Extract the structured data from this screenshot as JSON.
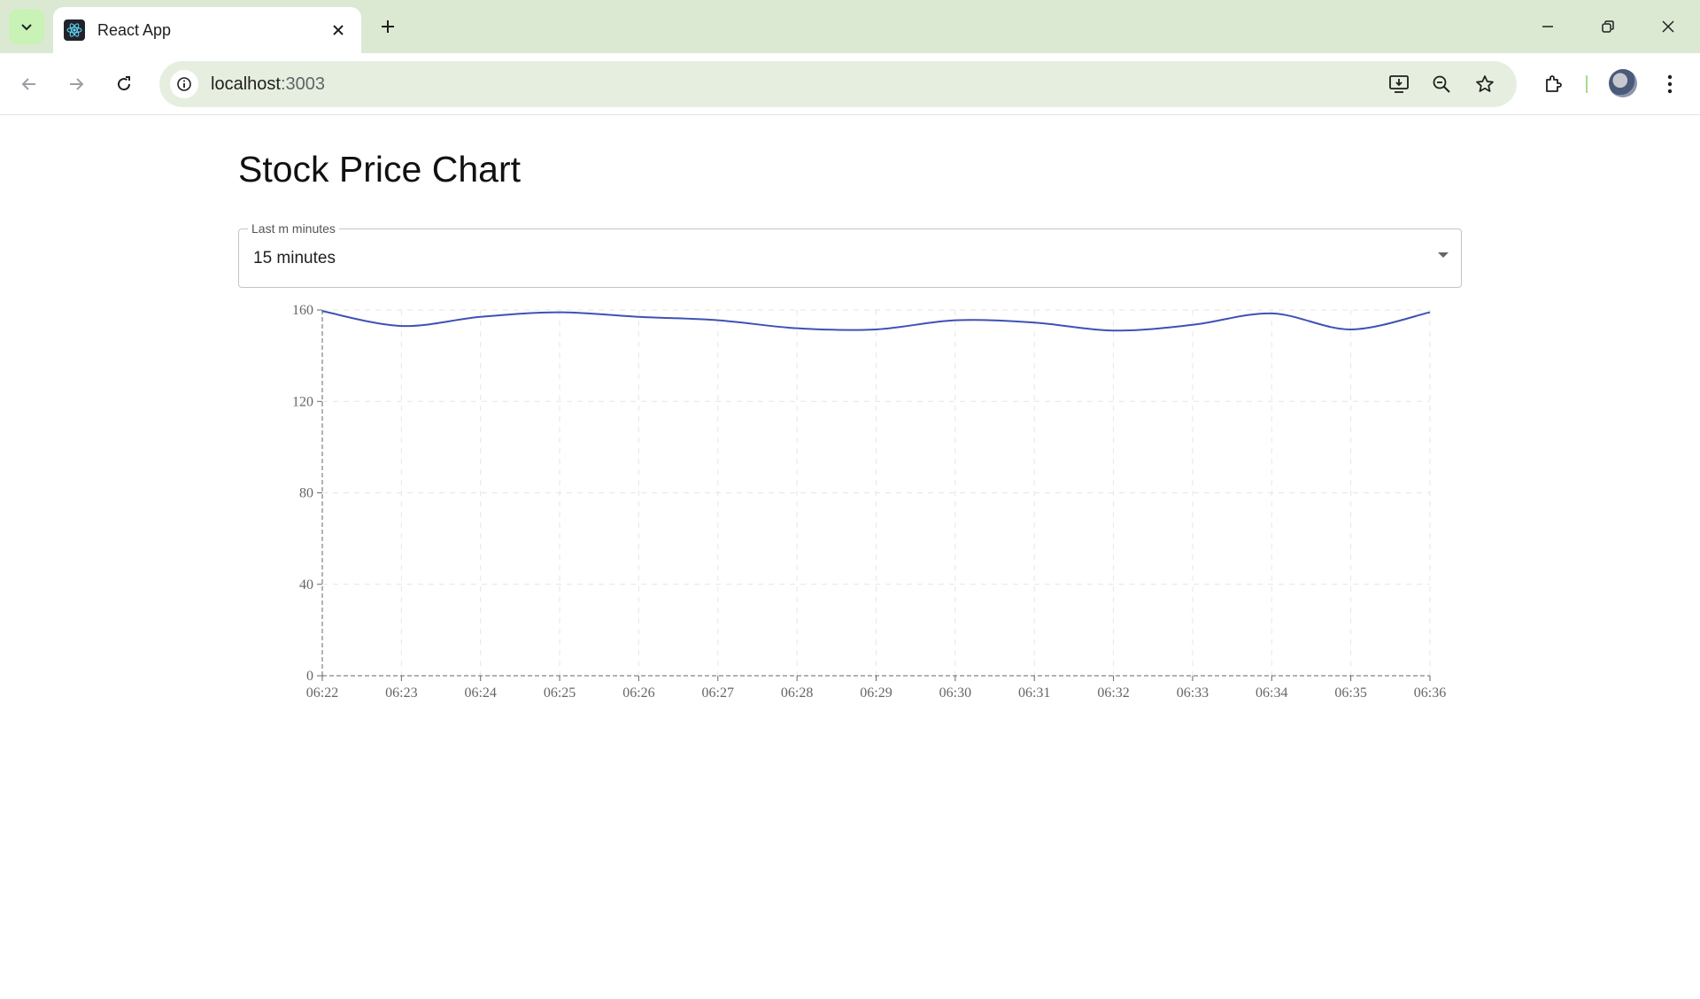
{
  "browser": {
    "tab_title": "React App",
    "url_host": "localhost",
    "url_port": ":3003"
  },
  "page": {
    "title": "Stock Price Chart",
    "select": {
      "label": "Last m minutes",
      "value": "15 minutes"
    }
  },
  "colors": {
    "line": "#3f51b5",
    "grid": "#e6e6e6",
    "axis": "#666666"
  },
  "chart_data": {
    "type": "line",
    "x": [
      "06:22",
      "06:23",
      "06:24",
      "06:25",
      "06:26",
      "06:27",
      "06:28",
      "06:29",
      "06:30",
      "06:31",
      "06:32",
      "06:33",
      "06:34",
      "06:35",
      "06:36"
    ],
    "series": [
      {
        "values": [
          159.5,
          153,
          157,
          159,
          157,
          155.5,
          152,
          151.5,
          155.5,
          154.5,
          151,
          153.5,
          158.5,
          151.5,
          159
        ]
      }
    ],
    "ylim": [
      0,
      160
    ],
    "yticks": [
      0,
      40,
      80,
      120,
      160
    ],
    "grid": true,
    "curve": "smooth"
  }
}
